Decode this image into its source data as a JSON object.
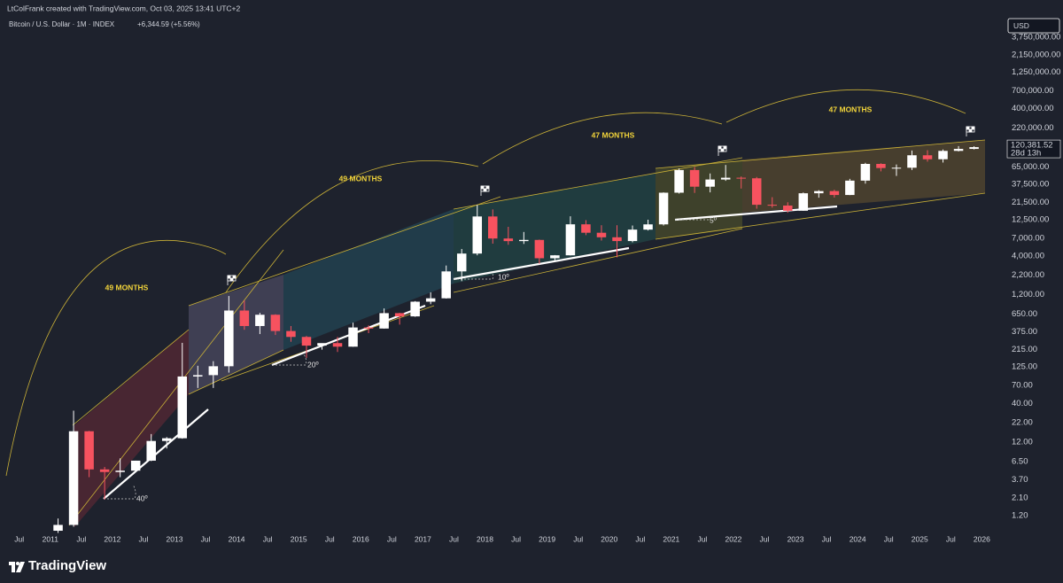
{
  "header": "LtColFrank created with TradingView.com, Oct 03, 2025 13:41 UTC+2",
  "watermark": "TradingView",
  "chart_data": {
    "type": "candlestick",
    "title": "Bitcoin / U.S. Dollar · 1M · INDEX",
    "change_label": "+6,344.59 (+5.56%)",
    "currency": "USD",
    "log_y": true,
    "up_color": "#ffffff",
    "down_color": "#f7525f",
    "xlim": [
      2010.19,
      2026.38
    ],
    "ylim": [
      0.73,
      6870000
    ],
    "xticks": [
      {
        "value": 2010.5,
        "label": "Jul"
      },
      2011,
      {
        "value": 2011.5,
        "label": "Jul"
      },
      2012,
      {
        "value": 2012.5,
        "label": "Jul"
      },
      2013,
      {
        "value": 2013.5,
        "label": "Jul"
      },
      2014,
      {
        "value": 2014.5,
        "label": "Jul"
      },
      2015,
      {
        "value": 2015.5,
        "label": "Jul"
      },
      2016,
      {
        "value": 2016.5,
        "label": "Jul"
      },
      2017,
      {
        "value": 2017.5,
        "label": "Jul"
      },
      2018,
      {
        "value": 2018.5,
        "label": "Jul"
      },
      2019,
      {
        "value": 2019.5,
        "label": "Jul"
      },
      2020,
      {
        "value": 2020.5,
        "label": "Jul"
      },
      2021,
      {
        "value": 2021.5,
        "label": "Jul"
      },
      2022,
      {
        "value": 2022.5,
        "label": "Jul"
      },
      2023,
      {
        "value": 2023.5,
        "label": "Jul"
      },
      2024,
      {
        "value": 2024.5,
        "label": "Jul"
      },
      2025,
      {
        "value": 2025.5,
        "label": "Jul"
      },
      2026
    ],
    "yticks": [
      {
        "value": 1.2,
        "label": "1.20"
      },
      {
        "value": 2.1,
        "label": "2.10"
      },
      {
        "value": 3.7,
        "label": "3.70"
      },
      {
        "value": 6.5,
        "label": "6.50"
      },
      {
        "value": 12,
        "label": "12.00"
      },
      {
        "value": 22,
        "label": "22.00"
      },
      {
        "value": 40,
        "label": "40.00"
      },
      {
        "value": 70,
        "label": "70.00"
      },
      {
        "value": 125,
        "label": "125.00"
      },
      {
        "value": 215,
        "label": "215.00"
      },
      {
        "value": 375,
        "label": "375.00"
      },
      {
        "value": 650,
        "label": "650.00"
      },
      {
        "value": 1200,
        "label": "1,200.00"
      },
      {
        "value": 2200,
        "label": "2,200.00"
      },
      {
        "value": 4000,
        "label": "4,000.00"
      },
      {
        "value": 7000,
        "label": "7,000.00"
      },
      {
        "value": 12500,
        "label": "12,500.00"
      },
      {
        "value": 21500,
        "label": "21,500.00"
      },
      {
        "value": 37500,
        "label": "37,500.00"
      },
      {
        "value": 65000,
        "label": "65,000.00"
      },
      {
        "value": 220000,
        "label": "220,000.00"
      },
      {
        "value": 400000,
        "label": "400,000.00"
      },
      {
        "value": 700000,
        "label": "700,000.00"
      },
      {
        "value": 1250000,
        "label": "1,250,000.00"
      },
      {
        "value": 2150000,
        "label": "2,150,000.00"
      },
      {
        "value": 3750000,
        "label": "3,750,000.00"
      }
    ],
    "price_marker": {
      "value": 120381.52,
      "label": "120,381.52",
      "countdown": "28d 13h"
    },
    "annotations": [
      "49 MONTHS",
      "49 MONTHS",
      "47 MONTHS",
      "47 MONTHS",
      "40º",
      "20º",
      "10º",
      "5º"
    ],
    "x": [
      2011.125,
      2011.375,
      2011.625,
      2011.875,
      2012.125,
      2012.375,
      2012.625,
      2012.875,
      2013.125,
      2013.375,
      2013.625,
      2013.875,
      2014.125,
      2014.375,
      2014.625,
      2014.875,
      2015.125,
      2015.375,
      2015.625,
      2015.875,
      2016.125,
      2016.375,
      2016.625,
      2016.875,
      2017.125,
      2017.375,
      2017.625,
      2017.875,
      2018.125,
      2018.375,
      2018.625,
      2018.875,
      2019.125,
      2019.375,
      2019.625,
      2019.875,
      2020.125,
      2020.375,
      2020.625,
      2020.875,
      2021.125,
      2021.375,
      2021.625,
      2021.875,
      2022.125,
      2022.375,
      2022.625,
      2022.875,
      2023.125,
      2023.375,
      2023.625,
      2023.875,
      2024.125,
      2024.375,
      2024.625,
      2024.875,
      2025.125,
      2025.375,
      2025.625,
      2025.875
    ],
    "open": [
      0.75,
      0.9,
      16.8,
      5.1,
      4.7,
      4.9,
      6.7,
      12.4,
      13.5,
      93,
      97,
      128,
      730,
      450,
      640,
      385,
      320,
      244,
      264,
      236,
      430,
      416,
      673,
      608,
      963,
      1070,
      2480,
      4330,
      13800,
      6930,
      6390,
      6630,
      3740,
      4100,
      10800,
      8300,
      7200,
      6400,
      9150,
      10780,
      29000,
      58900,
      35000,
      43800,
      46300,
      45500,
      19900,
      19400,
      16500,
      28500,
      30500,
      27000,
      42300,
      71300,
      62700,
      63300,
      93400,
      82500,
      107100,
      114000
    ],
    "high": [
      1.1,
      32,
      17,
      5.5,
      7.2,
      6.7,
      15.4,
      14,
      266,
      130,
      150,
      1150,
      1000,
      680,
      650,
      450,
      330,
      260,
      320,
      500,
      460,
      780,
      680,
      980,
      1290,
      2980,
      5000,
      19800,
      17200,
      9990,
      8500,
      6700,
      4130,
      13880,
      12300,
      10500,
      10500,
      10400,
      12470,
      29300,
      61700,
      64800,
      52900,
      69000,
      48200,
      47400,
      25200,
      21500,
      29200,
      31400,
      31800,
      44700,
      73800,
      72700,
      70000,
      108300,
      109400,
      111900,
      124400,
      123900
    ],
    "low": [
      0.7,
      0.85,
      4,
      2.0,
      4.0,
      4.7,
      6.6,
      9.8,
      13.3,
      65,
      65,
      105,
      400,
      350,
      340,
      275,
      166,
      215,
      200,
      235,
      360,
      415,
      470,
      600,
      890,
      1060,
      1830,
      4100,
      5900,
      5700,
      5850,
      3150,
      3350,
      4080,
      7700,
      6500,
      3850,
      6150,
      8900,
      10400,
      28200,
      28800,
      29300,
      42000,
      33000,
      17600,
      18200,
      15500,
      16500,
      24800,
      24900,
      26900,
      38500,
      56500,
      49000,
      58900,
      76600,
      74400,
      105300,
      112000
    ],
    "close": [
      0.9,
      16.8,
      5.1,
      4.7,
      4.9,
      6.7,
      12.4,
      13.5,
      93,
      97,
      128,
      730,
      450,
      640,
      385,
      320,
      244,
      264,
      236,
      430,
      416,
      673,
      608,
      963,
      1070,
      2480,
      4330,
      13800,
      6930,
      6390,
      6630,
      3740,
      4100,
      10800,
      8300,
      7200,
      6400,
      9150,
      10780,
      29000,
      58900,
      35000,
      43800,
      46300,
      45500,
      19900,
      19400,
      16500,
      28500,
      30500,
      27000,
      42300,
      71300,
      62700,
      63300,
      93400,
      82500,
      107100,
      114000,
      120381.52
    ]
  }
}
